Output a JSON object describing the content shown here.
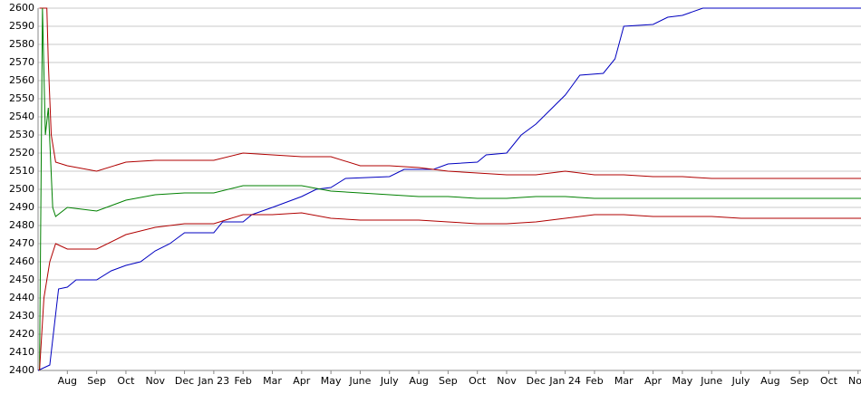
{
  "chart_data": {
    "type": "line",
    "xlim": [
      0,
      28.1
    ],
    "ylim": [
      2400,
      2600
    ],
    "yticks": [
      2400,
      2410,
      2420,
      2430,
      2440,
      2450,
      2460,
      2470,
      2480,
      2490,
      2500,
      2510,
      2520,
      2530,
      2540,
      2550,
      2560,
      2570,
      2580,
      2590,
      2600
    ],
    "xticks": [
      {
        "value": 1,
        "label": "Aug"
      },
      {
        "value": 2,
        "label": "Sep"
      },
      {
        "value": 3,
        "label": "Oct"
      },
      {
        "value": 4,
        "label": "Nov"
      },
      {
        "value": 5,
        "label": "Dec"
      },
      {
        "value": 6,
        "label": "Jan 23"
      },
      {
        "value": 7,
        "label": "Feb"
      },
      {
        "value": 8,
        "label": "Mar"
      },
      {
        "value": 9,
        "label": "Apr"
      },
      {
        "value": 10,
        "label": "May"
      },
      {
        "value": 11,
        "label": "June"
      },
      {
        "value": 12,
        "label": "July"
      },
      {
        "value": 13,
        "label": "Aug"
      },
      {
        "value": 14,
        "label": "Sep"
      },
      {
        "value": 15,
        "label": "Oct"
      },
      {
        "value": 16,
        "label": "Nov"
      },
      {
        "value": 17,
        "label": "Dec"
      },
      {
        "value": 18,
        "label": "Jan 24"
      },
      {
        "value": 19,
        "label": "Feb"
      },
      {
        "value": 20,
        "label": "Mar"
      },
      {
        "value": 21,
        "label": "Apr"
      },
      {
        "value": 22,
        "label": "May"
      },
      {
        "value": 23,
        "label": "June"
      },
      {
        "value": 24,
        "label": "July"
      },
      {
        "value": 25,
        "label": "Aug"
      },
      {
        "value": 26,
        "label": "Sep"
      },
      {
        "value": 27,
        "label": "Oct"
      },
      {
        "value": 28,
        "label": "Nov"
      }
    ],
    "grid": true,
    "series": [
      {
        "color": "#0000c0",
        "x": [
          0,
          0.4,
          0.7,
          1,
          1.3,
          2,
          2.5,
          3,
          3.5,
          4,
          4.5,
          5,
          6,
          6.3,
          7,
          7.3,
          8,
          9,
          9.5,
          10,
          10.5,
          12,
          12.5,
          13.5,
          14,
          15,
          15.3,
          16,
          16.5,
          17,
          17.5,
          18,
          18.5,
          19.3,
          19.7,
          20,
          21,
          21.5,
          22,
          22.7,
          28.1
        ],
        "values": [
          2400,
          2403,
          2445,
          2446,
          2450,
          2450,
          2455,
          2458,
          2460,
          2466,
          2470,
          2476,
          2476,
          2482,
          2482,
          2486,
          2490,
          2496,
          2500,
          2501,
          2506,
          2507,
          2511,
          2511,
          2514,
          2515,
          2519,
          2520,
          2530,
          2536,
          2544,
          2552,
          2563,
          2564,
          2572,
          2590,
          2591,
          2595,
          2596,
          2600,
          2600
        ]
      },
      {
        "color": "#b00000",
        "x": [
          0.05,
          0.3,
          0.35,
          0.45,
          0.6,
          1,
          2,
          3,
          4,
          5,
          6,
          7,
          8,
          9,
          10,
          11,
          12,
          13,
          14,
          15,
          16,
          17,
          18,
          19,
          20,
          21,
          22,
          23,
          24,
          25,
          26,
          27,
          28.1
        ],
        "values": [
          2600,
          2600,
          2570,
          2530,
          2515,
          2513,
          2510,
          2515,
          2516,
          2516,
          2516,
          2520,
          2519,
          2518,
          2518,
          2513,
          2513,
          2512,
          2510,
          2509,
          2508,
          2508,
          2510,
          2508,
          2508,
          2507,
          2507,
          2506,
          2506,
          2506,
          2506,
          2506,
          2506
        ]
      },
      {
        "color": "#008000",
        "x": [
          0.05,
          0.15,
          0.25,
          0.35,
          0.5,
          0.6,
          1,
          2,
          3,
          4,
          5,
          6,
          7,
          8,
          9,
          10,
          11,
          12,
          13,
          14,
          15,
          16,
          17,
          18,
          19,
          20,
          21,
          22,
          23,
          24,
          25,
          26,
          27,
          28.1
        ],
        "values": [
          2400,
          2600,
          2530,
          2545,
          2490,
          2485,
          2490,
          2488,
          2494,
          2497,
          2498,
          2498,
          2502,
          2502,
          2502,
          2499,
          2498,
          2497,
          2496,
          2496,
          2495,
          2495,
          2496,
          2496,
          2495,
          2495,
          2495,
          2495,
          2495,
          2495,
          2495,
          2495,
          2495,
          2495
        ]
      },
      {
        "color": "#b00000",
        "x": [
          0.05,
          0.2,
          0.4,
          0.6,
          1,
          2,
          3,
          4,
          5,
          6,
          7,
          8,
          9,
          10,
          11,
          12,
          13,
          14,
          15,
          16,
          17,
          18,
          19,
          20,
          21,
          22,
          23,
          24,
          25,
          26,
          27,
          28.1
        ],
        "values": [
          2400,
          2440,
          2460,
          2470,
          2467,
          2467,
          2475,
          2479,
          2481,
          2481,
          2486,
          2486,
          2487,
          2484,
          2483,
          2483,
          2483,
          2482,
          2481,
          2481,
          2482,
          2484,
          2486,
          2486,
          2485,
          2485,
          2485,
          2484,
          2484,
          2484,
          2484,
          2484
        ]
      }
    ]
  }
}
